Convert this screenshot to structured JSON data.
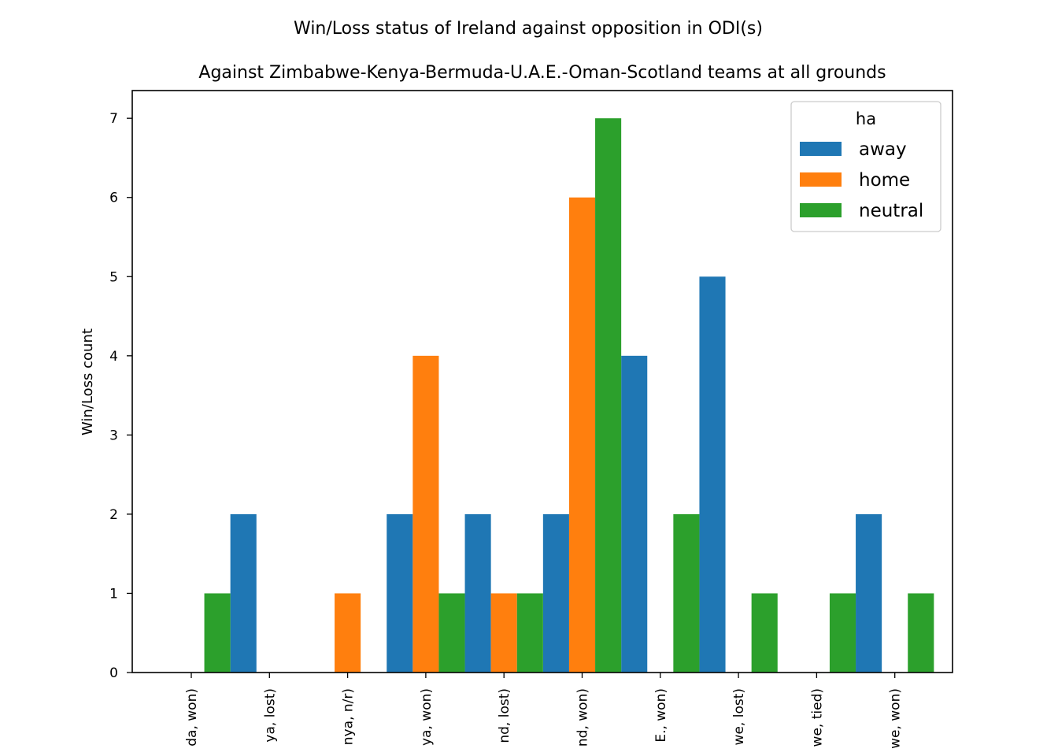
{
  "chart_data": {
    "type": "bar",
    "title": "Win/Loss status of Ireland against opposition in ODI(s)",
    "subtitle": "Against Zimbabwe-Kenya-Bermuda-U.A.E.-Oman-Scotland teams at all grounds",
    "xlabel": "",
    "ylabel": "Win/Loss count",
    "ylim": [
      0,
      7.35
    ],
    "yticks": [
      0,
      1,
      2,
      3,
      4,
      5,
      6,
      7
    ],
    "grid": false,
    "categories": [
      "da, won)",
      "ya, lost)",
      "nya, n/r)",
      "ya, won)",
      "nd, lost)",
      "nd, won)",
      "E., won)",
      "we, lost)",
      "we, tied)",
      "we, won)"
    ],
    "legend": {
      "title": "ha",
      "placement": "top-right"
    },
    "series": [
      {
        "name": "away",
        "color": "#1f77b4",
        "values": [
          0,
          2,
          0,
          2,
          2,
          2,
          4,
          5,
          0,
          2
        ]
      },
      {
        "name": "home",
        "color": "#ff7f0e",
        "values": [
          0,
          0,
          1,
          4,
          1,
          6,
          0,
          0,
          0,
          0
        ]
      },
      {
        "name": "neutral",
        "color": "#2ca02c",
        "values": [
          1,
          0,
          0,
          1,
          1,
          7,
          2,
          1,
          1,
          1
        ]
      }
    ]
  }
}
